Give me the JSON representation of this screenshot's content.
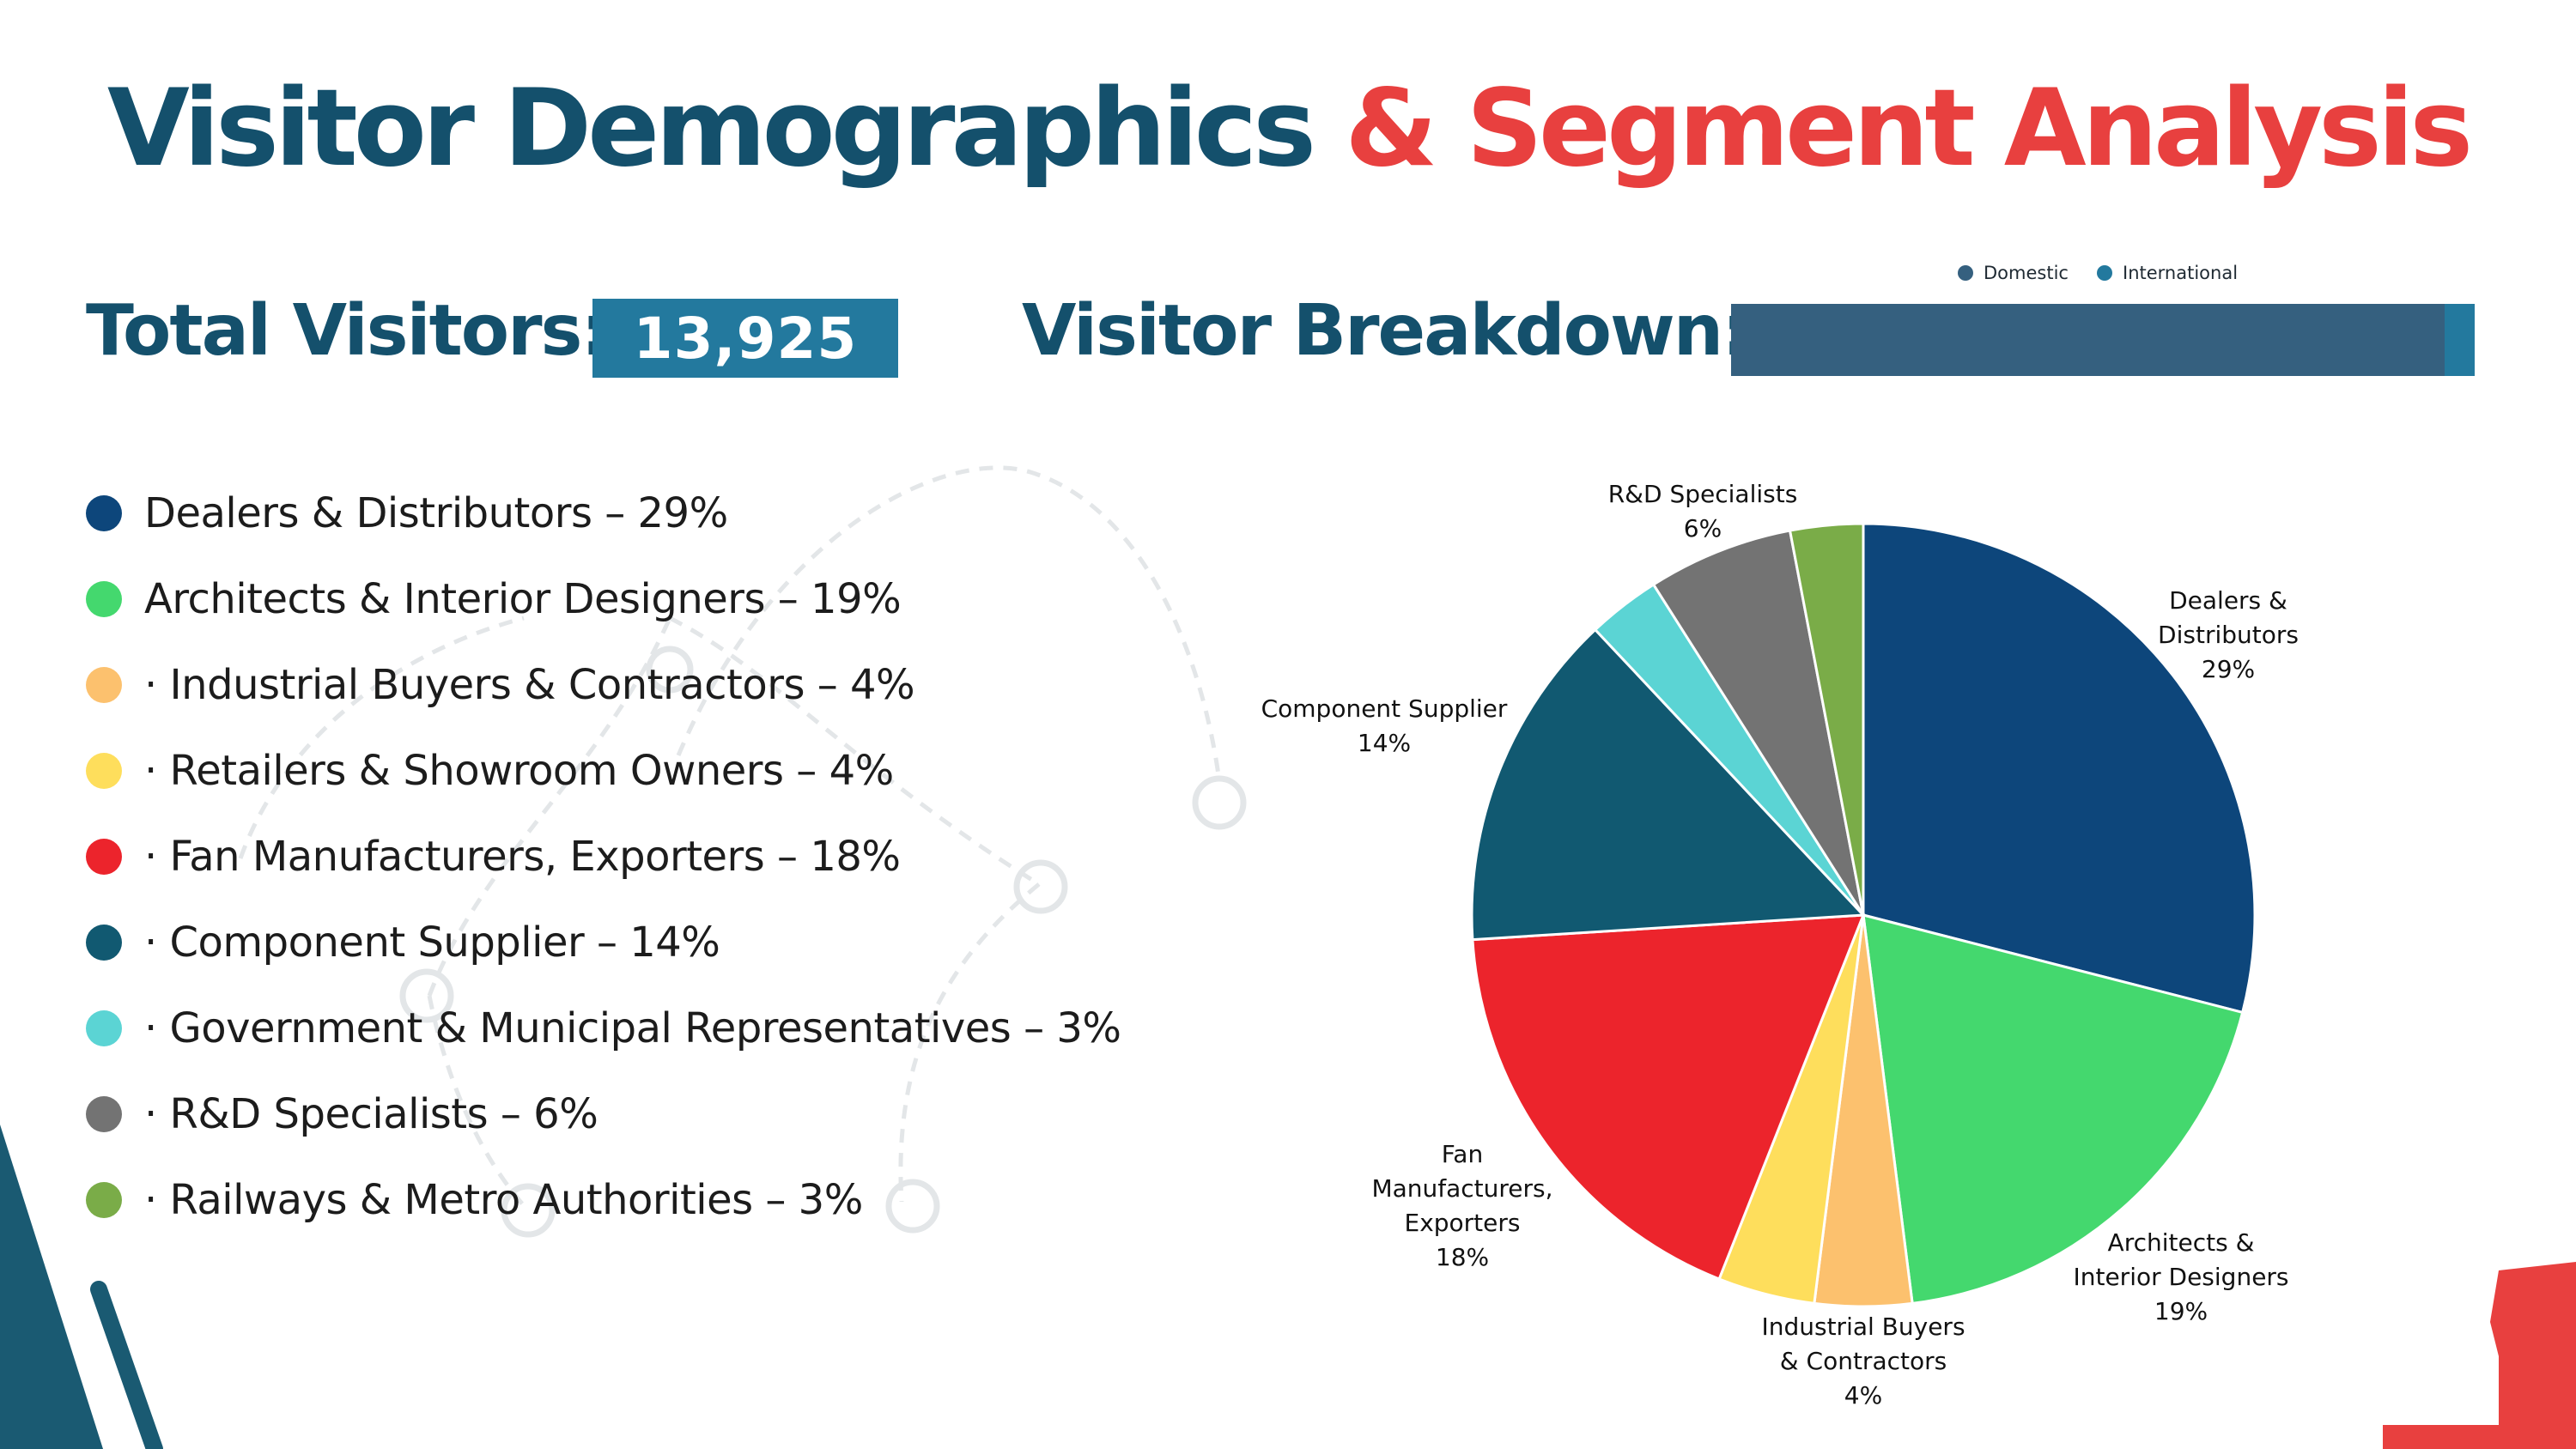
{
  "title": {
    "part1": "Visitor Demographics",
    "part2": "& Segment Analysis"
  },
  "colors": {
    "title_primary": "#14506c",
    "title_accent": "#e8403f",
    "value_box": "#23799e",
    "decor_dark": "#1a5a72",
    "decor_red": "#e8403f"
  },
  "total": {
    "label": "Total Visitors:",
    "value": "13,925"
  },
  "breakdown": {
    "label": "Visitor Breakdown:",
    "legend": [
      {
        "name": "Domestic",
        "color": "#35607f",
        "share": 0.96
      },
      {
        "name": "International",
        "color": "#23799e",
        "share": 0.04
      }
    ]
  },
  "segments": [
    {
      "bullet": "",
      "text": "Dealers & Distributors – 29%",
      "color": "#0d467b"
    },
    {
      "bullet": "",
      "text": "Architects & Interior Designers – 19%",
      "color": "#44d86e"
    },
    {
      "bullet": "·",
      "text": "Industrial Buyers & Contractors – 4%",
      "color": "#fcc16e"
    },
    {
      "bullet": "·",
      "text": "Retailers & Showroom Owners – 4%",
      "color": "#fede5c"
    },
    {
      "bullet": "·",
      "text": "Fan Manufacturers, Exporters – 18%",
      "color": "#ec242c"
    },
    {
      "bullet": "·",
      "text": "Component Supplier – 14%",
      "color": "#115971"
    },
    {
      "bullet": "·",
      "text": "Government & Municipal Representatives – 3%",
      "color": "#5bd4d4"
    },
    {
      "bullet": "·",
      "text": "R&D Specialists – 6%",
      "color": "#737373"
    },
    {
      "bullet": "·",
      "text": "Railways & Metro Authorities – 3%",
      "color": "#7aac48"
    }
  ],
  "chart_data": {
    "type": "pie",
    "start": "12 o'clock, clockwise",
    "slices": [
      {
        "name": "Dealers & Distributors",
        "value": 29,
        "color": "#0d467b",
        "label_lines": [
          "Dealers &",
          "Distributors",
          "29%"
        ]
      },
      {
        "name": "Architects & Interior Designers",
        "value": 19,
        "color": "#44d86e",
        "label_lines": [
          "Architects &",
          "Interior Designers",
          "19%"
        ]
      },
      {
        "name": "Industrial Buyers & Contractors",
        "value": 4,
        "color": "#fcc16e",
        "label_lines": [
          "Industrial Buyers",
          "& Contractors",
          "4%"
        ]
      },
      {
        "name": "Retailers & Showroom Owners",
        "value": 4,
        "color": "#fede5c",
        "label_lines": []
      },
      {
        "name": "Fan Manufacturers, Exporters",
        "value": 18,
        "color": "#ec242c",
        "label_lines": [
          "Fan",
          "Manufacturers,",
          "Exporters",
          "18%"
        ]
      },
      {
        "name": "Component Supplier",
        "value": 14,
        "color": "#115971",
        "label_lines": [
          "Component Supplier",
          "14%"
        ]
      },
      {
        "name": "Government & Municipal Representatives",
        "value": 3,
        "color": "#5bd4d4",
        "label_lines": []
      },
      {
        "name": "R&D Specialists",
        "value": 6,
        "color": "#737373",
        "label_lines": [
          "R&D Specialists",
          "6%"
        ]
      },
      {
        "name": "Railways & Metro Authorities",
        "value": 3,
        "color": "#7aac48",
        "label_lines": []
      }
    ]
  }
}
